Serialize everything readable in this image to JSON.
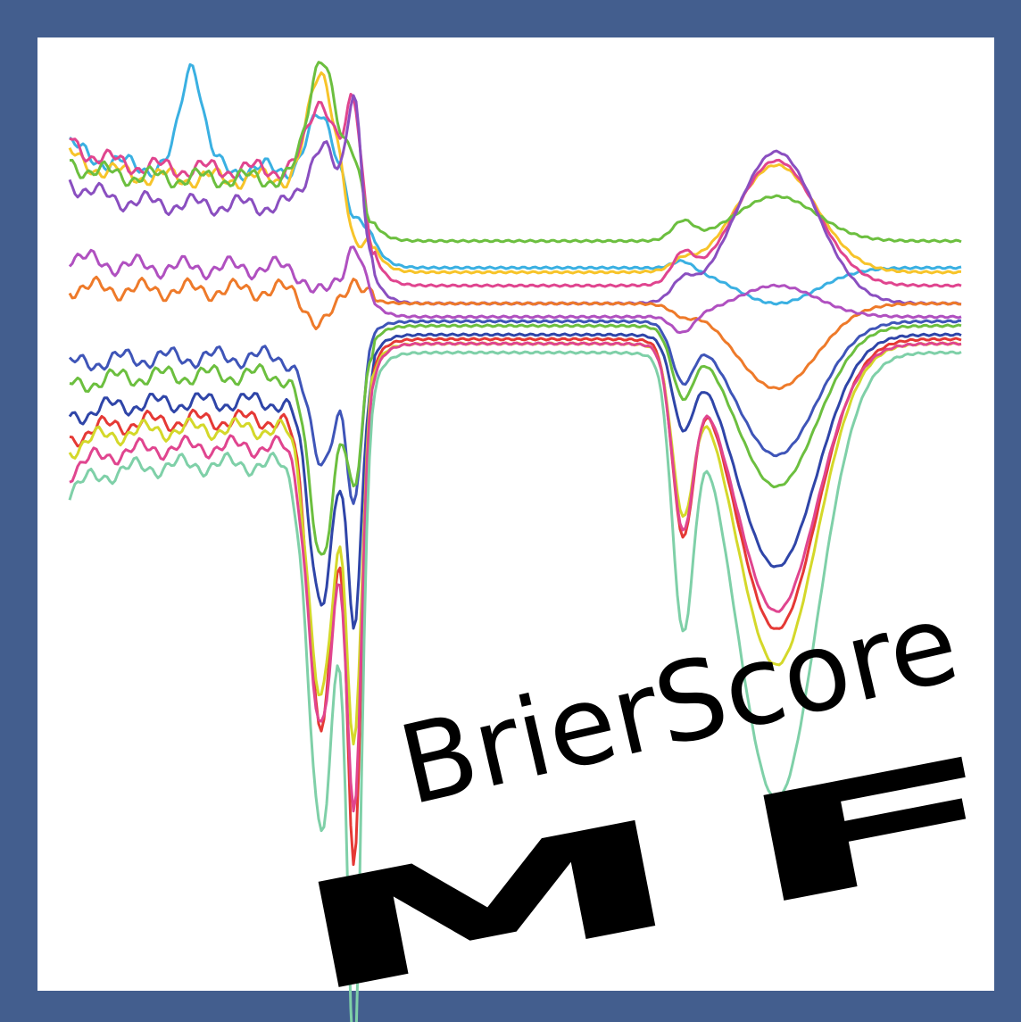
{
  "logo": {
    "title": "BrierScore",
    "subtitle": "MF"
  }
}
